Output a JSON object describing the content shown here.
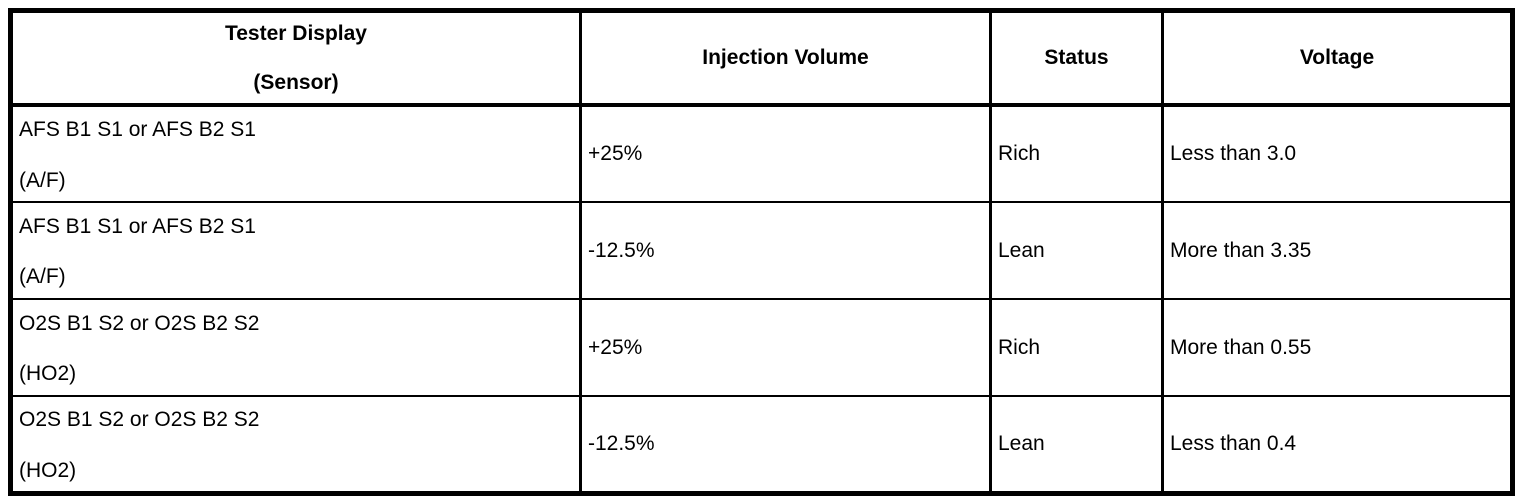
{
  "page": {
    "background_color": "#ffffff",
    "text_color": "#000000",
    "border_color": "#000000"
  },
  "table": {
    "header": {
      "col1_line1": "Tester Display",
      "col1_line2": "(Sensor)",
      "col2": "Injection Volume",
      "col3": "Status",
      "col4": "Voltage"
    },
    "rows": [
      {
        "sensor": "AFS B1 S1 or AFS B2 S1",
        "sensor_sub": "(A/F)",
        "injection_volume": "+25%",
        "status": "Rich",
        "voltage": "Less than 3.0"
      },
      {
        "sensor": "AFS B1 S1 or AFS B2 S1",
        "sensor_sub": "(A/F)",
        "injection_volume": "-12.5%",
        "status": "Lean",
        "voltage": "More than 3.35"
      },
      {
        "sensor": "O2S B1 S2 or O2S B2 S2",
        "sensor_sub": "(HO2)",
        "injection_volume": "+25%",
        "status": "Rich",
        "voltage": "More than 0.55"
      },
      {
        "sensor": "O2S B1 S2 or O2S B2 S2",
        "sensor_sub": "(HO2)",
        "injection_volume": "-12.5%",
        "status": "Lean",
        "voltage": "Less than 0.4"
      }
    ]
  }
}
